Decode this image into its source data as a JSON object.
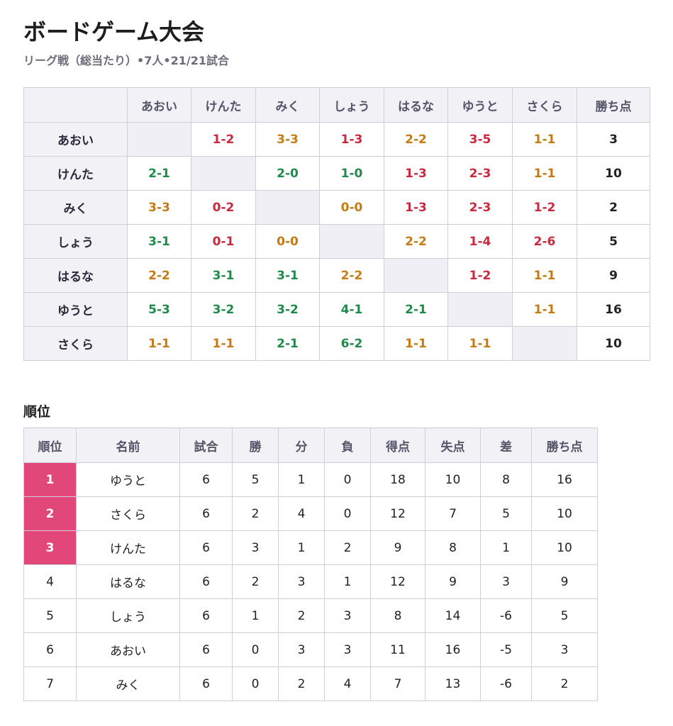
{
  "title": "ボードゲーム大会",
  "subtitle": "リーグ戦（総当たり）•7人•21/21試合",
  "matrix": {
    "columns": [
      "",
      "あおい",
      "けんた",
      "みく",
      "しょう",
      "はるな",
      "ゆうと",
      "さくら",
      "勝ち点"
    ],
    "rows": [
      {
        "name": "あおい",
        "cells": [
          "",
          "1-2",
          "3-3",
          "1-3",
          "2-2",
          "3-5",
          "1-1"
        ],
        "points": "3"
      },
      {
        "name": "けんた",
        "cells": [
          "2-1",
          "",
          "2-0",
          "1-0",
          "1-3",
          "2-3",
          "1-1"
        ],
        "points": "10"
      },
      {
        "name": "みく",
        "cells": [
          "3-3",
          "0-2",
          "",
          "0-0",
          "1-3",
          "2-3",
          "1-2"
        ],
        "points": "2"
      },
      {
        "name": "しょう",
        "cells": [
          "3-1",
          "0-1",
          "0-0",
          "",
          "2-2",
          "1-4",
          "2-6"
        ],
        "points": "5"
      },
      {
        "name": "はるな",
        "cells": [
          "2-2",
          "3-1",
          "3-1",
          "2-2",
          "",
          "1-2",
          "1-1"
        ],
        "points": "9"
      },
      {
        "name": "ゆうと",
        "cells": [
          "5-3",
          "3-2",
          "3-2",
          "4-1",
          "2-1",
          "",
          "1-1"
        ],
        "points": "16"
      },
      {
        "name": "さくら",
        "cells": [
          "1-1",
          "1-1",
          "2-1",
          "6-2",
          "1-1",
          "1-1",
          ""
        ],
        "points": "10"
      }
    ]
  },
  "standings_title": "順位",
  "standings": {
    "columns": [
      "順位",
      "名前",
      "試合",
      "勝",
      "分",
      "負",
      "得点",
      "失点",
      "差",
      "勝ち点"
    ],
    "rows": [
      [
        "1",
        "ゆうと",
        "6",
        "5",
        "1",
        "0",
        "18",
        "10",
        "8",
        "16"
      ],
      [
        "2",
        "さくら",
        "6",
        "2",
        "4",
        "0",
        "12",
        "7",
        "5",
        "10"
      ],
      [
        "3",
        "けんた",
        "6",
        "3",
        "1",
        "2",
        "9",
        "8",
        "1",
        "10"
      ],
      [
        "4",
        "はるな",
        "6",
        "2",
        "3",
        "1",
        "12",
        "9",
        "3",
        "9"
      ],
      [
        "5",
        "しょう",
        "6",
        "1",
        "2",
        "3",
        "8",
        "14",
        "-6",
        "5"
      ],
      [
        "6",
        "あおい",
        "6",
        "0",
        "3",
        "3",
        "11",
        "16",
        "-5",
        "3"
      ],
      [
        "7",
        "みく",
        "6",
        "0",
        "2",
        "4",
        "7",
        "13",
        "-6",
        "2"
      ]
    ]
  },
  "colors": {
    "win": "#1f8a4c",
    "lose": "#c9283e",
    "draw": "#c57a12",
    "top_rank": "#e2477a"
  }
}
